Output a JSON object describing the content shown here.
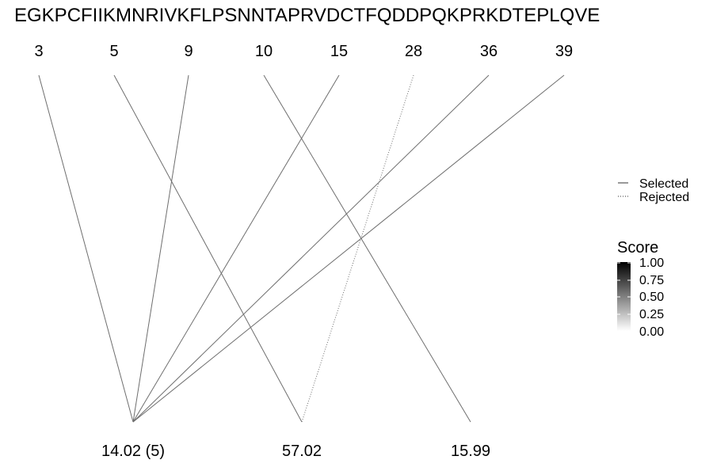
{
  "sequence": "EGKPCFIIKMNRIVKFLPSNNTAPRVDCTFQDDPQKPRKDTEPLQVE",
  "positions": [
    "3",
    "5",
    "9",
    "10",
    "15",
    "28",
    "36",
    "39"
  ],
  "masses": [
    "14.02 (5)",
    "57.02",
    "15.99"
  ],
  "links": [
    {
      "from": 0,
      "to": 0,
      "status": "selected",
      "score": 0.5
    },
    {
      "from": 1,
      "to": 1,
      "status": "selected",
      "score": 0.5
    },
    {
      "from": 2,
      "to": 0,
      "status": "selected",
      "score": 0.5
    },
    {
      "from": 3,
      "to": 2,
      "status": "selected",
      "score": 0.5
    },
    {
      "from": 4,
      "to": 0,
      "status": "selected",
      "score": 0.5
    },
    {
      "from": 5,
      "to": 1,
      "status": "rejected",
      "score": 0.5
    },
    {
      "from": 6,
      "to": 0,
      "status": "selected",
      "score": 0.5
    },
    {
      "from": 7,
      "to": 0,
      "status": "selected",
      "score": 0.5
    }
  ],
  "legend": {
    "line_types": [
      {
        "label": "Selected",
        "status": "selected"
      },
      {
        "label": "Rejected",
        "status": "rejected"
      }
    ],
    "score_title": "Score",
    "score_ticks": [
      "1.00",
      "0.75",
      "0.50",
      "0.25",
      "0.00"
    ]
  },
  "colors": {
    "line": "#6e6e6e",
    "score_high": "#000000",
    "score_low": "#ffffff"
  }
}
